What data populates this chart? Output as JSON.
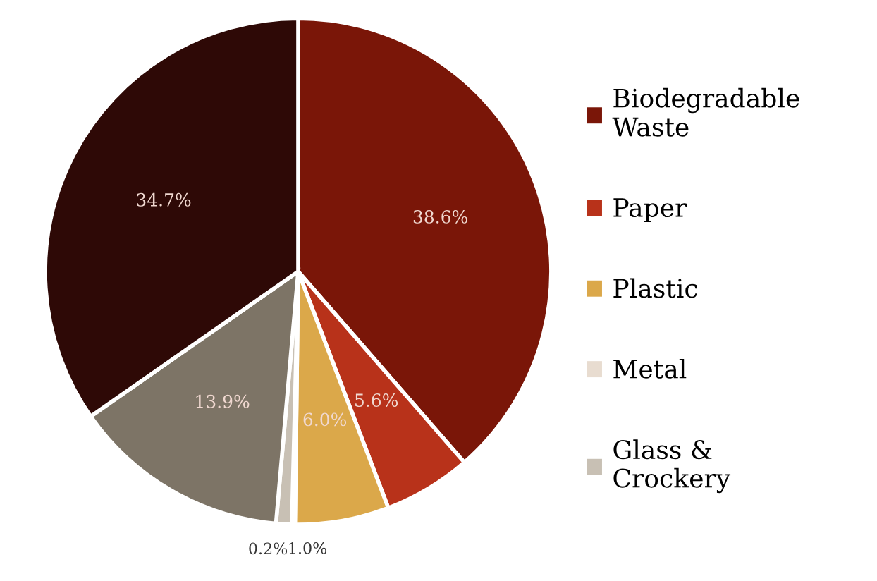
{
  "chart_data": {
    "type": "pie",
    "categories": [
      "Biodegradable Waste",
      "Paper",
      "Plastic",
      "Metal",
      "Glass & Crockery",
      null,
      null
    ],
    "values": [
      38.6,
      5.6,
      6.0,
      0.2,
      1.0,
      13.9,
      34.7
    ],
    "value_labels": [
      "38.6%",
      "5.6%",
      "6.0%",
      "0.2%",
      "1.0%",
      "13.9%",
      "34.7%"
    ],
    "colors": [
      "#7a1608",
      "#b8321a",
      "#dba84a",
      "#e8dcd0",
      "#c8c0b4",
      "#7d7466",
      "#2e0906"
    ],
    "legend": "right"
  }
}
